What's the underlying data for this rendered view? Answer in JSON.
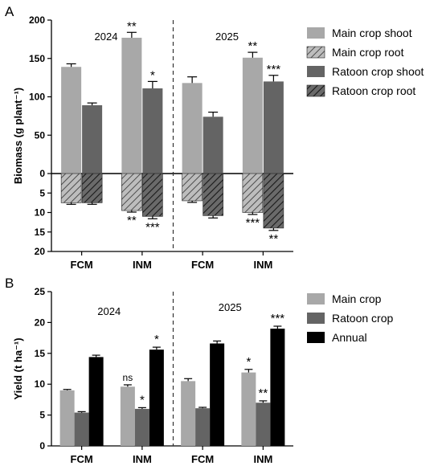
{
  "colors": {
    "main_crop": "#a8a8a8",
    "ratoon_crop": "#646464",
    "annual": "#000000",
    "hatch_main_bg": "#bdbdbd",
    "hatch_ratoon_bg": "#4a4a4a"
  },
  "chart_data": [
    {
      "panel_label": "A",
      "type": "bar",
      "ylabel": "Biomass (g plant⁻¹)",
      "ylim": [
        -20,
        200
      ],
      "yticks": [
        -20,
        -15,
        -10,
        -5,
        0,
        50,
        100,
        150,
        200
      ],
      "ytick_labels": [
        "20",
        "15",
        "10",
        "5",
        "0",
        "50",
        "100",
        "150",
        "200"
      ],
      "root_axis_note": "root biomass plotted downward below 0",
      "categories": [
        "FCM",
        "INM",
        "FCM",
        "INM"
      ],
      "groups": [
        "2024",
        "2025"
      ],
      "series": [
        {
          "name": "Main crop shoot",
          "pattern": "solid",
          "values": [
            139,
            177,
            118,
            151
          ],
          "errors": [
            4,
            7,
            8,
            7
          ],
          "sig": [
            "",
            "**",
            "",
            "**"
          ]
        },
        {
          "name": "Main crop root",
          "pattern": "hatched",
          "values": [
            -7.5,
            -9.5,
            -7.0,
            -10.0
          ],
          "errors": [
            0.4,
            0.4,
            0.4,
            0.5
          ],
          "sig": [
            "",
            "**",
            "",
            "***"
          ]
        },
        {
          "name": "Ratoon crop shoot",
          "pattern": "solid",
          "values": [
            89,
            111,
            74,
            120
          ],
          "errors": [
            3,
            9,
            6,
            8
          ],
          "sig": [
            "",
            "*",
            "",
            "***"
          ]
        },
        {
          "name": "Ratoon crop root",
          "pattern": "hatched",
          "values": [
            -7.5,
            -11.0,
            -10.8,
            -14.0
          ],
          "errors": [
            0.4,
            0.6,
            0.6,
            0.6
          ],
          "sig": [
            "",
            "***",
            "",
            "**"
          ]
        }
      ],
      "year_labels": [
        "2024",
        "2025"
      ],
      "legend": "right"
    },
    {
      "panel_label": "B",
      "type": "bar",
      "ylabel": "Yield (t ha⁻¹)",
      "ylim": [
        0,
        25
      ],
      "yticks": [
        0,
        5,
        10,
        15,
        20,
        25
      ],
      "categories": [
        "FCM",
        "INM",
        "FCM",
        "INM"
      ],
      "groups": [
        "2024",
        "2025"
      ],
      "series": [
        {
          "name": "Main crop",
          "values": [
            9.0,
            9.6,
            10.5,
            11.9
          ],
          "errors": [
            0.15,
            0.3,
            0.4,
            0.5
          ],
          "sig": [
            "",
            "ns",
            "",
            "*"
          ]
        },
        {
          "name": "Ratoon crop",
          "values": [
            5.4,
            6.0,
            6.1,
            7.0
          ],
          "errors": [
            0.15,
            0.2,
            0.15,
            0.3
          ],
          "sig": [
            "",
            "*",
            "",
            "**"
          ]
        },
        {
          "name": "Annual",
          "values": [
            14.4,
            15.6,
            16.6,
            19.0
          ],
          "errors": [
            0.3,
            0.4,
            0.4,
            0.4
          ],
          "sig": [
            "",
            "*",
            "",
            "***"
          ]
        }
      ],
      "year_labels": [
        "2024",
        "2025"
      ],
      "legend": "right"
    }
  ]
}
